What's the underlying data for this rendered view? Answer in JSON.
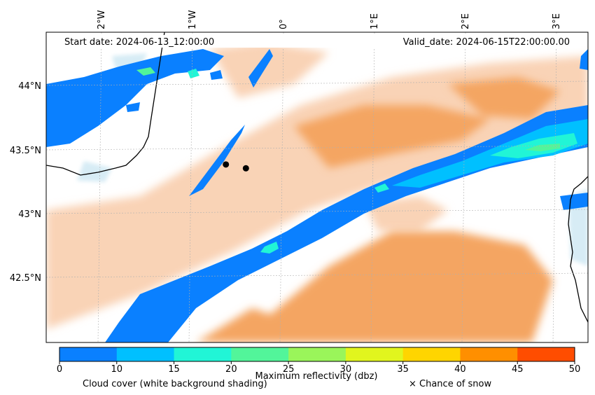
{
  "header": {
    "start_date": "Start date: 2024-06-13_12:00:00",
    "valid_date": "Valid_date: 2024-06-15T22:00:00.00"
  },
  "axes": {
    "lon_labels": [
      "2°W",
      "1°W",
      "0°",
      "1°E",
      "2°E",
      "3°E"
    ],
    "lat_labels": [
      "44°N",
      "43.5°N",
      "43°N",
      "42.5°N"
    ]
  },
  "colorbar": {
    "ticks": [
      "0",
      "10",
      "15",
      "20",
      "25",
      "30",
      "35",
      "40",
      "45",
      "50"
    ],
    "colors": [
      "#0a80ff",
      "#00c0ff",
      "#21f5d6",
      "#52f59a",
      "#9af55a",
      "#e1f51e",
      "#ffd500",
      "#ff8f00",
      "#ff4d00"
    ],
    "label": "Maximum reflectivity (dbz)"
  },
  "legend": {
    "cloud_note": "Cloud cover (white background shading)",
    "snow_note": "× Chance of snow"
  },
  "colors": {
    "cloud_light": "#f9d3b6",
    "cloud_dense": "#f4a562",
    "rain_blue": "#0a80ff",
    "coast": "#000000"
  },
  "markers": [
    {
      "name": "station-1",
      "lon": -0.61,
      "lat": 43.38
    },
    {
      "name": "station-2",
      "lon": -0.39,
      "lat": 43.35
    }
  ]
}
